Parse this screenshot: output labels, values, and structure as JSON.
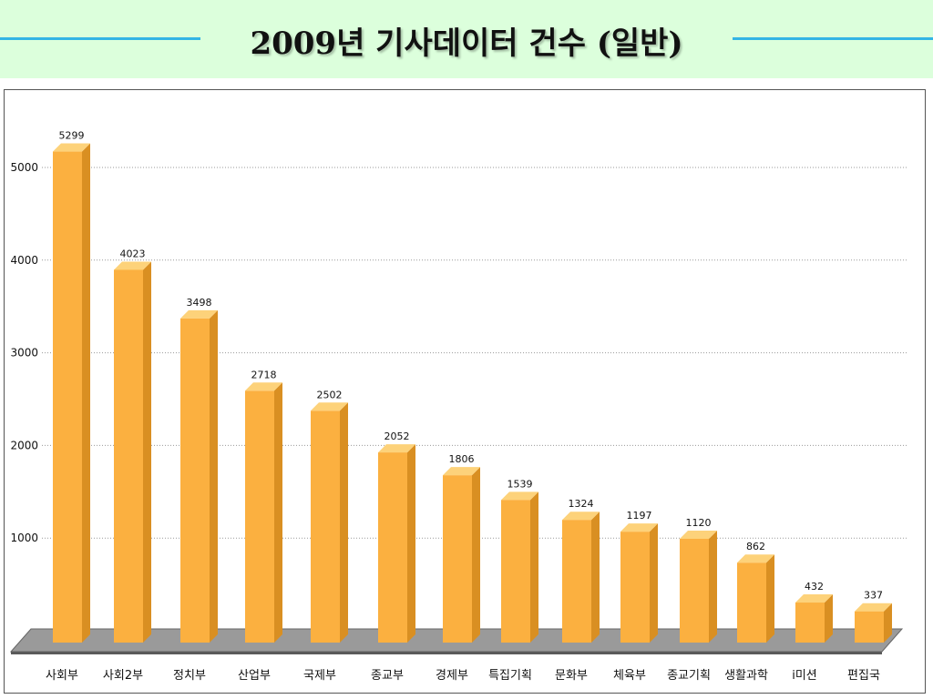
{
  "page": {
    "title": "2009년 기사데이터 건수 (일반)"
  },
  "colors": {
    "banner": "#dcffdc",
    "banner_line": "#33b5e5",
    "bar_front": "#fbb040",
    "bar_side": "#d98f22",
    "bar_top": "#fdd27a",
    "floor": "#888888"
  },
  "chart_data": {
    "type": "bar",
    "title": "",
    "xlabel": "",
    "ylabel": "",
    "ylim": [
      0,
      5400
    ],
    "yticks": [
      1000,
      2000,
      3000,
      4000,
      5000
    ],
    "grid": true,
    "legend": "none",
    "categories": [
      "사회부",
      "사회2부",
      "정치부",
      "산업부",
      "국제부",
      "종교부",
      "경제부",
      "특집기획",
      "문화부",
      "체육부",
      "종교기획",
      "생활과학",
      "i미션",
      "편집국"
    ],
    "values": [
      5299,
      4023,
      3498,
      2718,
      2502,
      2052,
      1806,
      1539,
      1324,
      1197,
      1120,
      862,
      432,
      337
    ]
  }
}
